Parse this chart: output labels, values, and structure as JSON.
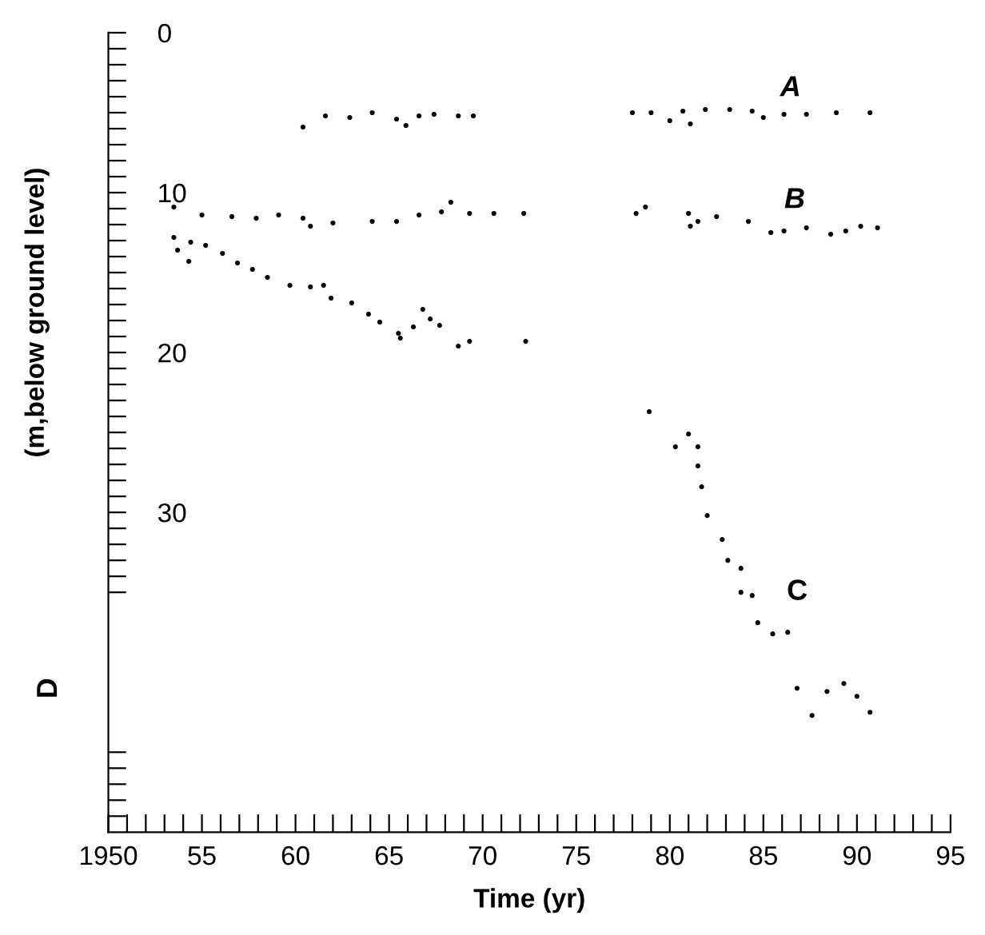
{
  "chart_data": {
    "type": "scatter",
    "xlabel": "Time (yr)",
    "ylabel": "(m,below ground level)",
    "xlim": [
      1950,
      1995
    ],
    "ylim": [
      50,
      0
    ],
    "xticks": [
      {
        "value": 1950,
        "label": "1950"
      },
      {
        "value": 1951,
        "label": null
      },
      {
        "value": 1952,
        "label": null
      },
      {
        "value": 1953,
        "label": null
      },
      {
        "value": 1954,
        "label": null
      },
      {
        "value": 1955,
        "label": "55"
      },
      {
        "value": 1956,
        "label": null
      },
      {
        "value": 1957,
        "label": null
      },
      {
        "value": 1958,
        "label": null
      },
      {
        "value": 1959,
        "label": null
      },
      {
        "value": 1960,
        "label": "60"
      },
      {
        "value": 1961,
        "label": null
      },
      {
        "value": 1962,
        "label": null
      },
      {
        "value": 1963,
        "label": null
      },
      {
        "value": 1964,
        "label": null
      },
      {
        "value": 1965,
        "label": "65"
      },
      {
        "value": 1966,
        "label": null
      },
      {
        "value": 1967,
        "label": null
      },
      {
        "value": 1968,
        "label": null
      },
      {
        "value": 1969,
        "label": null
      },
      {
        "value": 1970,
        "label": "70"
      },
      {
        "value": 1971,
        "label": null
      },
      {
        "value": 1972,
        "label": null
      },
      {
        "value": 1973,
        "label": null
      },
      {
        "value": 1974,
        "label": null
      },
      {
        "value": 1975,
        "label": "75"
      },
      {
        "value": 1976,
        "label": null
      },
      {
        "value": 1977,
        "label": null
      },
      {
        "value": 1978,
        "label": null
      },
      {
        "value": 1979,
        "label": null
      },
      {
        "value": 1980,
        "label": "80"
      },
      {
        "value": 1981,
        "label": null
      },
      {
        "value": 1982,
        "label": null
      },
      {
        "value": 1983,
        "label": null
      },
      {
        "value": 1984,
        "label": null
      },
      {
        "value": 1985,
        "label": "85"
      },
      {
        "value": 1986,
        "label": null
      },
      {
        "value": 1987,
        "label": null
      },
      {
        "value": 1988,
        "label": null
      },
      {
        "value": 1989,
        "label": null
      },
      {
        "value": 1990,
        "label": "90"
      },
      {
        "value": 1991,
        "label": null
      },
      {
        "value": 1992,
        "label": null
      },
      {
        "value": 1993,
        "label": null
      },
      {
        "value": 1994,
        "label": null
      },
      {
        "value": 1995,
        "label": "95"
      }
    ],
    "yticks": [
      0,
      {
        "value": 1,
        "label": null
      },
      {
        "value": 2,
        "label": null
      },
      {
        "value": 3,
        "label": null
      },
      {
        "value": 4,
        "label": null
      },
      {
        "value": 5,
        "label": null
      },
      {
        "value": 6,
        "label": null
      },
      {
        "value": 7,
        "label": null
      },
      {
        "value": 8,
        "label": null
      },
      {
        "value": 9,
        "label": null
      },
      10,
      {
        "value": 11,
        "label": null
      },
      {
        "value": 12,
        "label": null
      },
      {
        "value": 13,
        "label": null
      },
      {
        "value": 14,
        "label": null
      },
      {
        "value": 15,
        "label": null
      },
      {
        "value": 16,
        "label": null
      },
      {
        "value": 17,
        "label": null
      },
      {
        "value": 18,
        "label": null
      },
      {
        "value": 19,
        "label": null
      },
      20,
      {
        "value": 21,
        "label": null
      },
      {
        "value": 22,
        "label": null
      },
      {
        "value": 23,
        "label": null
      },
      {
        "value": 24,
        "label": null
      },
      {
        "value": 25,
        "label": null
      },
      {
        "value": 26,
        "label": null
      },
      {
        "value": 27,
        "label": null
      },
      {
        "value": 28,
        "label": null
      },
      {
        "value": 29,
        "label": null
      },
      30,
      {
        "value": 31,
        "label": null
      },
      {
        "value": 32,
        "label": null
      },
      {
        "value": 33,
        "label": null
      },
      {
        "value": 34,
        "label": null
      },
      {
        "value": 35,
        "label": null
      },
      {
        "value": 45,
        "label": null
      },
      {
        "value": 46,
        "label": null
      },
      {
        "value": 47,
        "label": null
      },
      {
        "value": 48,
        "label": null
      },
      {
        "value": 49,
        "label": null
      }
    ],
    "grid": false,
    "legend": false,
    "marker": "circle",
    "series": [
      {
        "color": "#000000",
        "x": [
          1960.4,
          1961.6,
          1962.9,
          1964.1,
          1965.4,
          1965.9,
          1966.6,
          1967.4,
          1968.7,
          1969.5,
          1978.0,
          1979.0,
          1980.0,
          1980.7,
          1981.1,
          1981.9,
          1983.2,
          1984.4,
          1985.0,
          1986.1,
          1987.3,
          1988.9,
          1990.7
        ],
        "values": [
          5.9,
          5.2,
          5.3,
          5.0,
          5.4,
          5.8,
          5.2,
          5.1,
          5.2,
          5.2,
          5.0,
          5.0,
          5.5,
          4.9,
          5.7,
          4.8,
          4.8,
          4.9,
          5.3,
          5.1,
          5.1,
          5.0,
          5.0
        ]
      },
      {
        "color": "#000000",
        "x": [
          1953.5,
          1955.0,
          1956.6,
          1957.9,
          1959.1,
          1960.4,
          1960.8,
          1962.0,
          1964.1,
          1965.4,
          1966.6,
          1967.8,
          1968.3,
          1969.3,
          1970.6,
          1972.2,
          1978.2,
          1978.7,
          1981.0,
          1981.1,
          1981.5,
          1982.5,
          1984.2,
          1985.4,
          1986.1,
          1987.3,
          1988.6,
          1989.4,
          1990.2,
          1991.1
        ],
        "values": [
          10.9,
          11.4,
          11.5,
          11.6,
          11.4,
          11.6,
          12.1,
          11.9,
          11.8,
          11.8,
          11.4,
          11.2,
          10.6,
          11.3,
          11.3,
          11.3,
          11.3,
          10.9,
          11.3,
          12.1,
          11.8,
          11.5,
          11.8,
          12.5,
          12.4,
          12.2,
          12.6,
          12.4,
          12.1,
          12.2
        ]
      },
      {
        "color": "#000000",
        "x": [
          1953.5,
          1953.7,
          1954.3,
          1954.4,
          1955.2,
          1956.1,
          1956.9,
          1957.7,
          1958.5,
          1959.7,
          1960.8,
          1961.5,
          1961.9,
          1963.0,
          1963.9,
          1964.5,
          1965.5,
          1965.6,
          1966.3,
          1966.8,
          1967.2,
          1967.7,
          1968.7,
          1969.3,
          1972.3,
          1978.9,
          1980.3,
          1981.0,
          1981.5,
          1981.5,
          1981.7,
          1982.0,
          1982.8,
          1983.1,
          1983.8,
          1983.8,
          1984.4,
          1984.7,
          1985.5,
          1986.3,
          1986.8,
          1987.6,
          1988.4,
          1989.3,
          1990.0,
          1990.7
        ],
        "values": [
          12.8,
          13.6,
          14.3,
          13.1,
          13.3,
          13.8,
          14.4,
          14.8,
          15.3,
          15.8,
          15.9,
          15.8,
          16.6,
          16.9,
          17.6,
          18.1,
          18.8,
          19.1,
          18.4,
          17.3,
          17.9,
          18.3,
          19.6,
          19.3,
          19.3,
          23.7,
          25.9,
          25.1,
          25.9,
          27.1,
          28.4,
          30.2,
          31.7,
          33.0,
          33.5,
          35.0,
          35.2,
          36.9,
          37.6,
          37.5,
          41.0,
          42.7,
          41.2,
          40.7,
          41.5,
          42.5
        ]
      }
    ],
    "annotations": [
      "D",
      "A",
      "B",
      "C"
    ]
  }
}
